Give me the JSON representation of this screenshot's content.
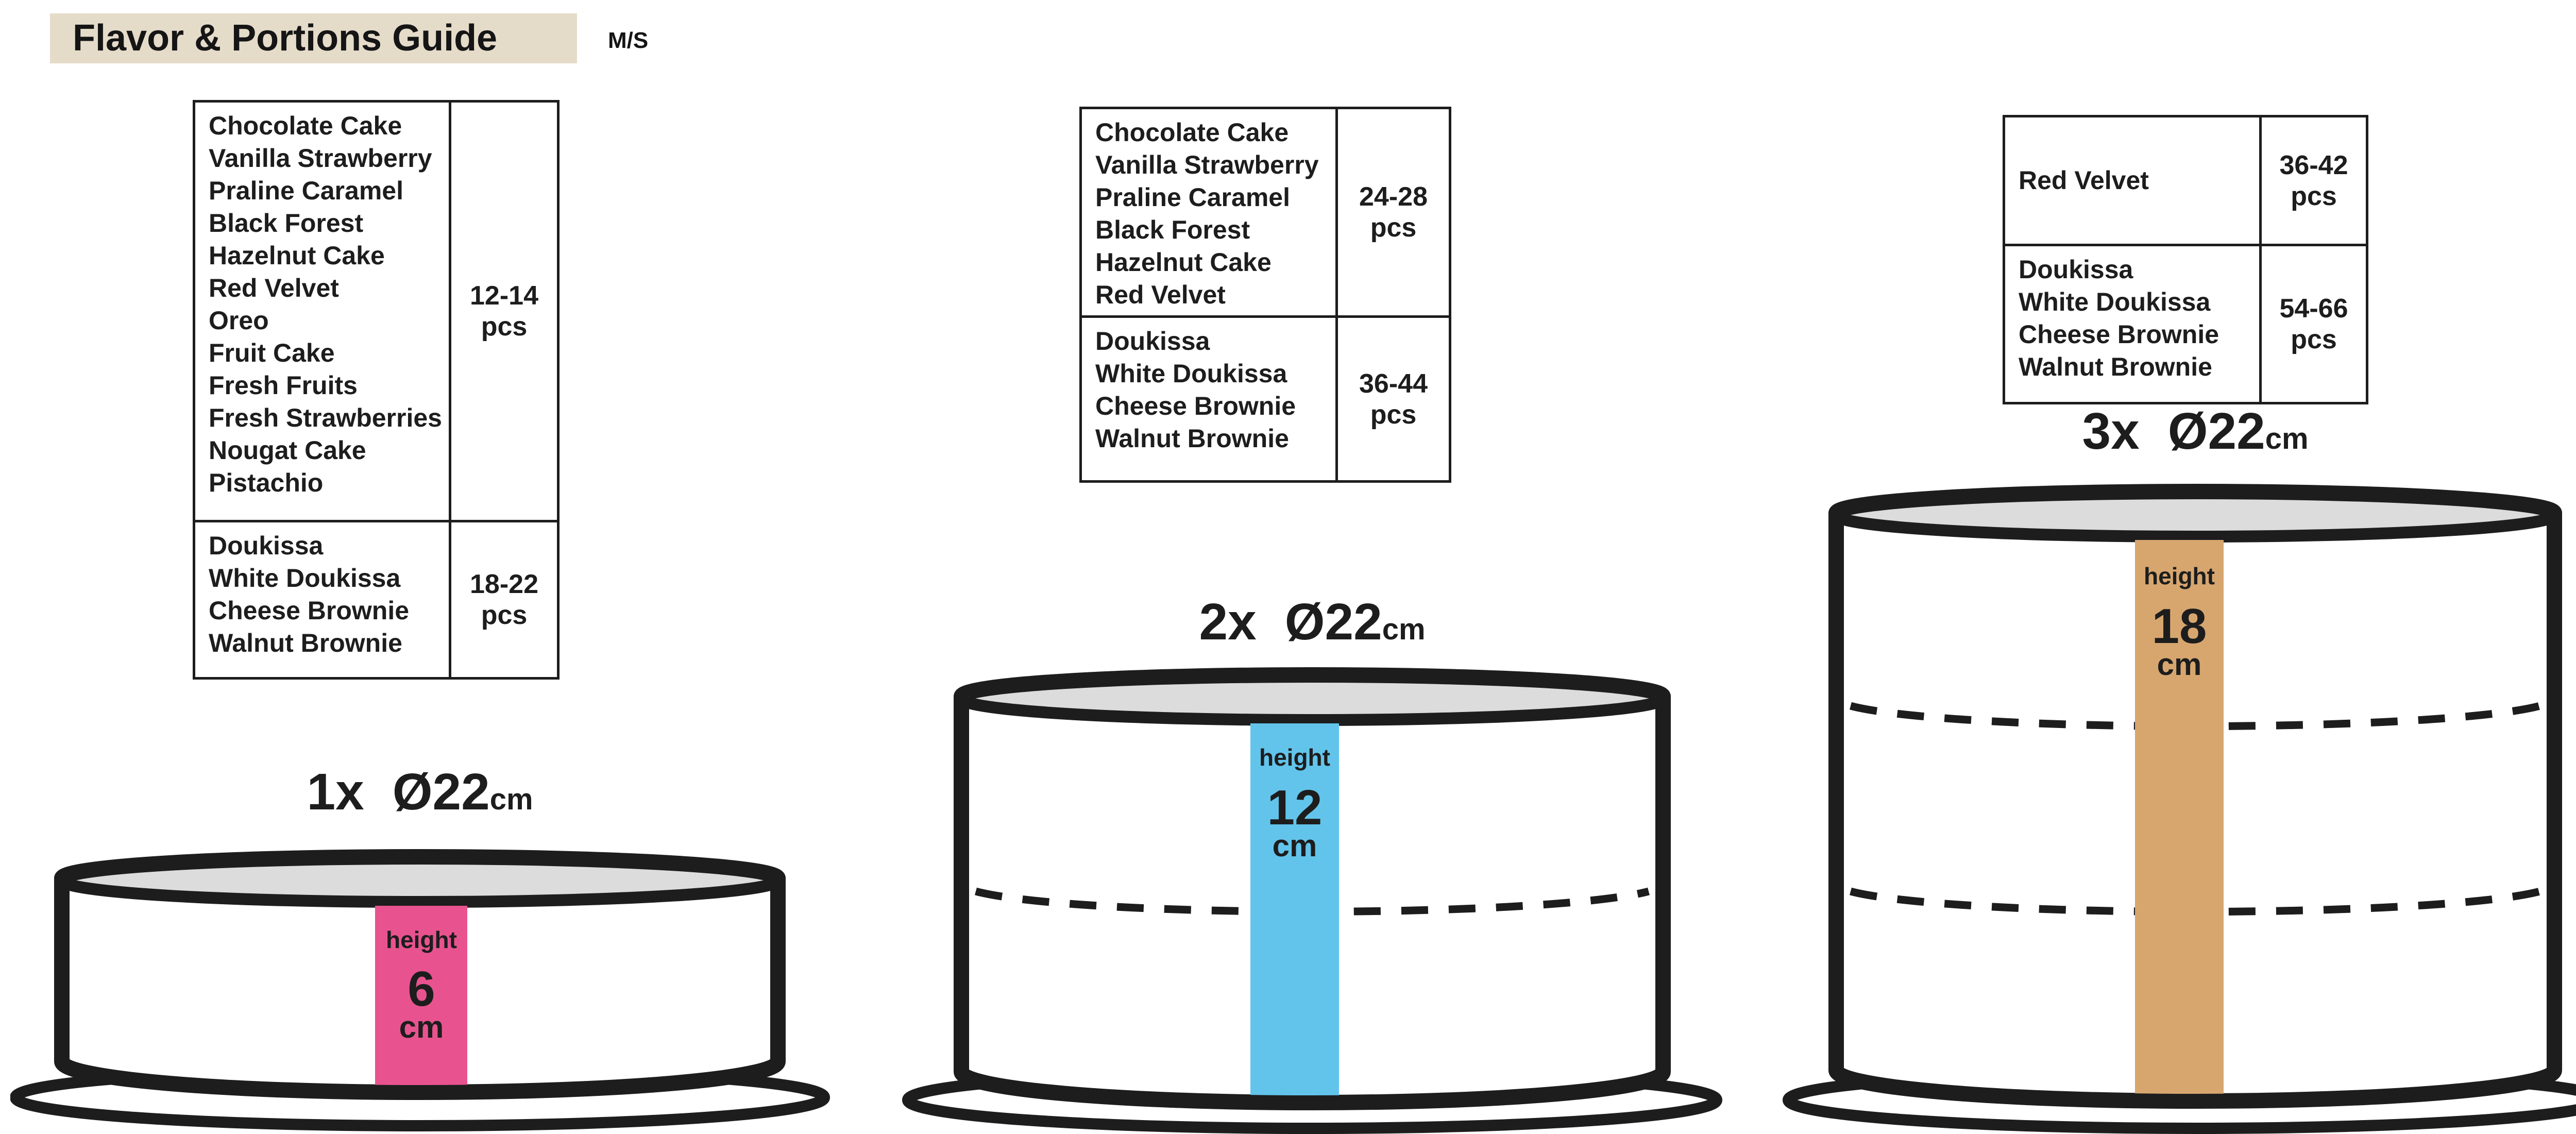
{
  "header": {
    "title": "Flavor & Portions Guide",
    "size_code": "M/S"
  },
  "colors": {
    "title_bg": "#e5dbc9",
    "outline": "#1d1d1d",
    "cake_top_gray": "#dcdcdc",
    "bar_pink": "#e8538f",
    "bar_blue": "#62c4eb",
    "bar_tan": "#d7a66f"
  },
  "tables": [
    {
      "name": "flavors-1x",
      "rows": [
        {
          "flavors": [
            "Chocolate Cake",
            "Vanilla Strawberry",
            "Praline Caramel",
            "Black Forest",
            "Hazelnut Cake",
            "Red Velvet",
            "Oreo",
            "Fruit Cake",
            "Fresh Fruits",
            "Fresh Strawberries",
            "Nougat Cake",
            "Pistachio"
          ],
          "portions_range": "12-14",
          "portions_unit": "pcs"
        },
        {
          "flavors": [
            "Doukissa",
            "White Doukissa",
            "Cheese Brownie",
            "Walnut Brownie"
          ],
          "portions_range": "18-22",
          "portions_unit": "pcs"
        }
      ]
    },
    {
      "name": "flavors-2x",
      "rows": [
        {
          "flavors": [
            "Chocolate Cake",
            "Vanilla Strawberry",
            "Praline Caramel",
            "Black Forest",
            "Hazelnut Cake",
            "Red Velvet"
          ],
          "portions_range": "24-28",
          "portions_unit": "pcs"
        },
        {
          "flavors": [
            "Doukissa",
            "White Doukissa",
            "Cheese Brownie",
            "Walnut Brownie"
          ],
          "portions_range": "36-44",
          "portions_unit": "pcs"
        }
      ]
    },
    {
      "name": "flavors-3x",
      "rows": [
        {
          "flavors": [
            "Red Velvet"
          ],
          "portions_range": "36-42",
          "portions_unit": "pcs"
        },
        {
          "flavors": [
            "Doukissa",
            "White Doukissa",
            "Cheese Brownie",
            "Walnut Brownie"
          ],
          "portions_range": "54-66",
          "portions_unit": "pcs"
        }
      ]
    }
  ],
  "cakes": [
    {
      "count": "1x",
      "diameter": "Ø22",
      "diameter_unit": "cm",
      "tiers": 1,
      "bar_label": "height",
      "bar_value": "6",
      "bar_unit": "cm",
      "bar_color": "#e8538f"
    },
    {
      "count": "2x",
      "diameter": "Ø22",
      "diameter_unit": "cm",
      "tiers": 2,
      "bar_label": "height",
      "bar_value": "12",
      "bar_unit": "cm",
      "bar_color": "#62c4eb"
    },
    {
      "count": "3x",
      "diameter": "Ø22",
      "diameter_unit": "cm",
      "tiers": 3,
      "bar_label": "height",
      "bar_value": "18",
      "bar_unit": "cm",
      "bar_color": "#d7a66f"
    }
  ]
}
